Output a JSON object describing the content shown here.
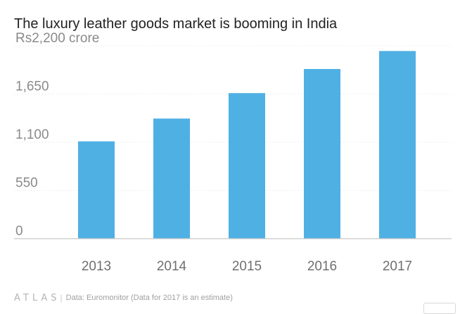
{
  "chart_data": {
    "type": "bar",
    "title": "The luxury leather goods market is booming in India",
    "categories": [
      "2013",
      "2014",
      "2015",
      "2016",
      "2017"
    ],
    "values": [
      1110,
      1370,
      1660,
      1935,
      2140
    ],
    "yticks": [
      "0",
      "550",
      "1,100",
      "1,650",
      "Rs2,200 crore"
    ],
    "ytick_values": [
      0,
      550,
      1100,
      1650,
      2200
    ],
    "ylim": [
      0,
      2200
    ],
    "xlabel": "",
    "ylabel": "",
    "grid": true,
    "bar_color": "#4fb0e4"
  },
  "footer": {
    "brand": "ATLAS",
    "separator": "|",
    "source": "Data:  Euromonitor (Data for 2017 is an estimate)"
  }
}
